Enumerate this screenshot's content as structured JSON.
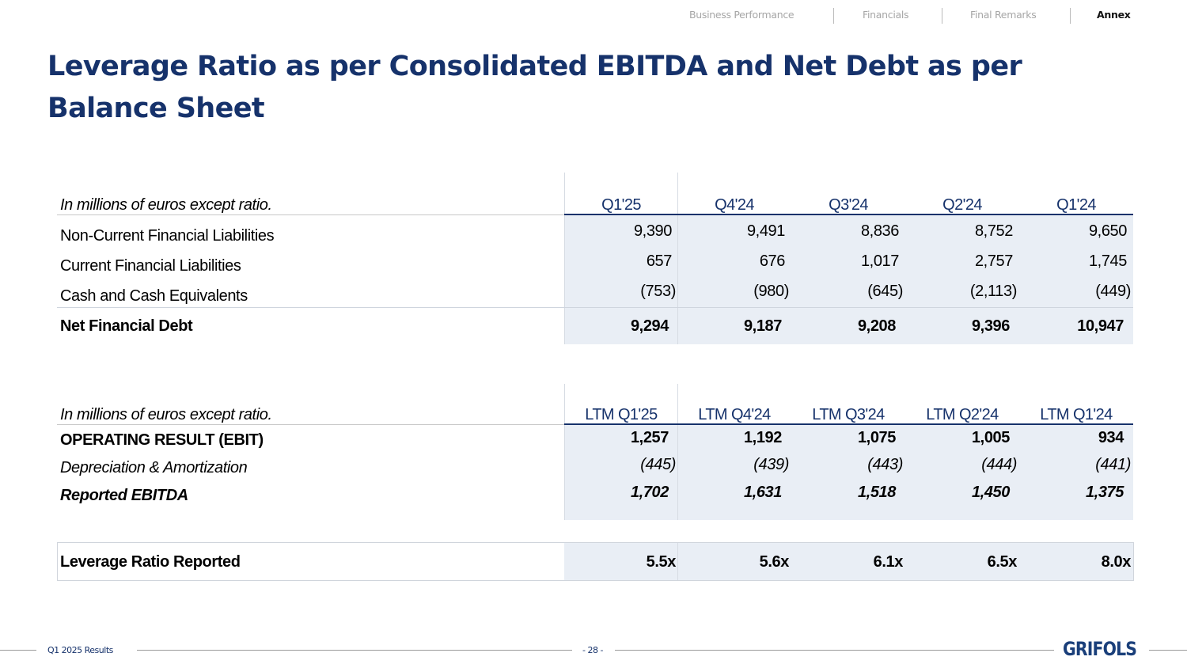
{
  "nav": {
    "items": [
      "Business Performance",
      "Financials",
      "Final Remarks",
      "Annex"
    ],
    "active": "Annex"
  },
  "title": "Leverage Ratio as per Consolidated EBITDA and Net Debt as per Balance Sheet",
  "debt_table": {
    "caption": "In millions of euros except ratio.",
    "columns": [
      "Q1'25",
      "Q4'24",
      "Q3'24",
      "Q2'24",
      "Q1'24"
    ],
    "rows": [
      {
        "label": "Non-Current Financial Liabilities",
        "values": [
          "9,390",
          "9,491",
          "8,836",
          "8,752",
          "9,650"
        ]
      },
      {
        "label": "Current Financial Liabilities",
        "values": [
          "657",
          "676",
          "1,017",
          "2,757",
          "1,745"
        ]
      },
      {
        "label": "Cash and Cash Equivalents",
        "values": [
          "(753)",
          "(980)",
          "(645)",
          "(2,113)",
          "(449)"
        ]
      },
      {
        "label": "Net Financial Debt",
        "values": [
          "9,294",
          "9,187",
          "9,208",
          "9,396",
          "10,947"
        ]
      }
    ]
  },
  "ebitda_table": {
    "caption": "In millions of euros except ratio.",
    "columns": [
      "LTM Q1'25",
      "LTM Q4'24",
      "LTM Q3'24",
      "LTM Q2'24",
      "LTM Q1'24"
    ],
    "rows": [
      {
        "label": "OPERATING RESULT (EBIT)",
        "values": [
          "1,257",
          "1,192",
          "1,075",
          "1,005",
          "934"
        ]
      },
      {
        "label": "Depreciation & Amortization",
        "values": [
          "(445)",
          "(439)",
          "(443)",
          "(444)",
          "(441)"
        ]
      },
      {
        "label": "Reported EBITDA",
        "values": [
          "1,702",
          "1,631",
          "1,518",
          "1,450",
          "1,375"
        ]
      }
    ]
  },
  "leverage": {
    "label": "Leverage Ratio Reported",
    "values": [
      "5.5x",
      "5.6x",
      "6.1x",
      "6.5x",
      "8.0x"
    ]
  },
  "footer": {
    "left": "Q1 2025 Results",
    "page": "- 28 -",
    "logo": "GRIFOLS"
  },
  "colors": {
    "brand": "#16326b",
    "shade": "#e9eef5"
  }
}
